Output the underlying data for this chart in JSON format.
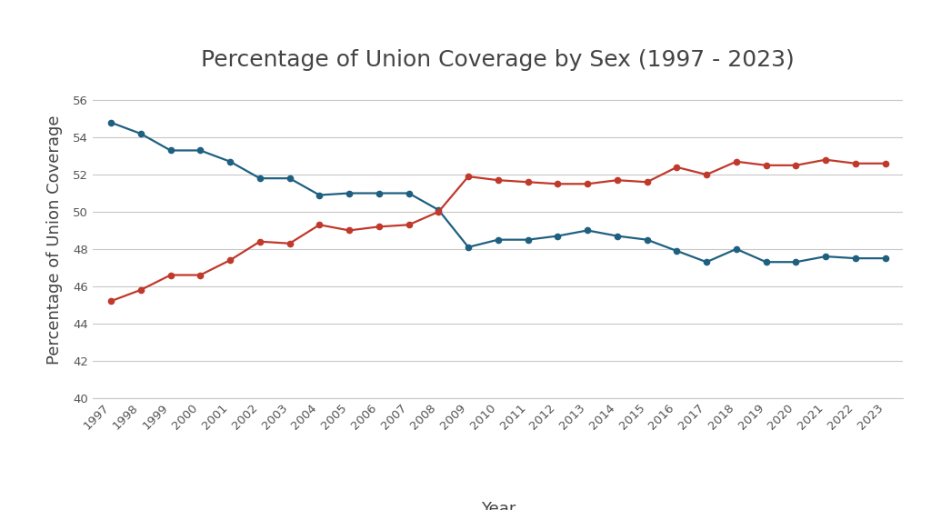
{
  "title": "Percentage of Union Coverage by Sex (1997 - 2023)",
  "xlabel": "Year",
  "ylabel": "Percentage of Union Coverage",
  "years": [
    1997,
    1998,
    1999,
    2000,
    2001,
    2002,
    2003,
    2004,
    2005,
    2006,
    2007,
    2008,
    2009,
    2010,
    2011,
    2012,
    2013,
    2014,
    2015,
    2016,
    2017,
    2018,
    2019,
    2020,
    2021,
    2022,
    2023
  ],
  "men": [
    54.8,
    54.2,
    53.3,
    53.3,
    52.7,
    51.8,
    51.8,
    50.9,
    51.0,
    51.0,
    51.0,
    50.1,
    48.1,
    48.5,
    48.5,
    48.7,
    49.0,
    48.7,
    48.5,
    47.9,
    47.3,
    48.0,
    47.3,
    47.3,
    47.6,
    47.5,
    47.5
  ],
  "women": [
    45.2,
    45.8,
    46.6,
    46.6,
    47.4,
    48.4,
    48.3,
    49.3,
    49.0,
    49.2,
    49.3,
    50.0,
    51.9,
    51.7,
    51.6,
    51.5,
    51.5,
    51.7,
    51.6,
    52.4,
    52.0,
    52.7,
    52.5,
    52.5,
    52.8,
    52.6,
    52.6
  ],
  "men_color": "#1f6080",
  "women_color": "#c0392b",
  "ylim_min": 40,
  "ylim_max": 57,
  "yticks": [
    40,
    42,
    44,
    46,
    48,
    50,
    52,
    54,
    56
  ],
  "background_color": "#ffffff",
  "grid_color": "#c8c8c8",
  "title_fontsize": 18,
  "axis_label_fontsize": 13,
  "tick_fontsize": 9.5,
  "legend_fontsize": 12
}
